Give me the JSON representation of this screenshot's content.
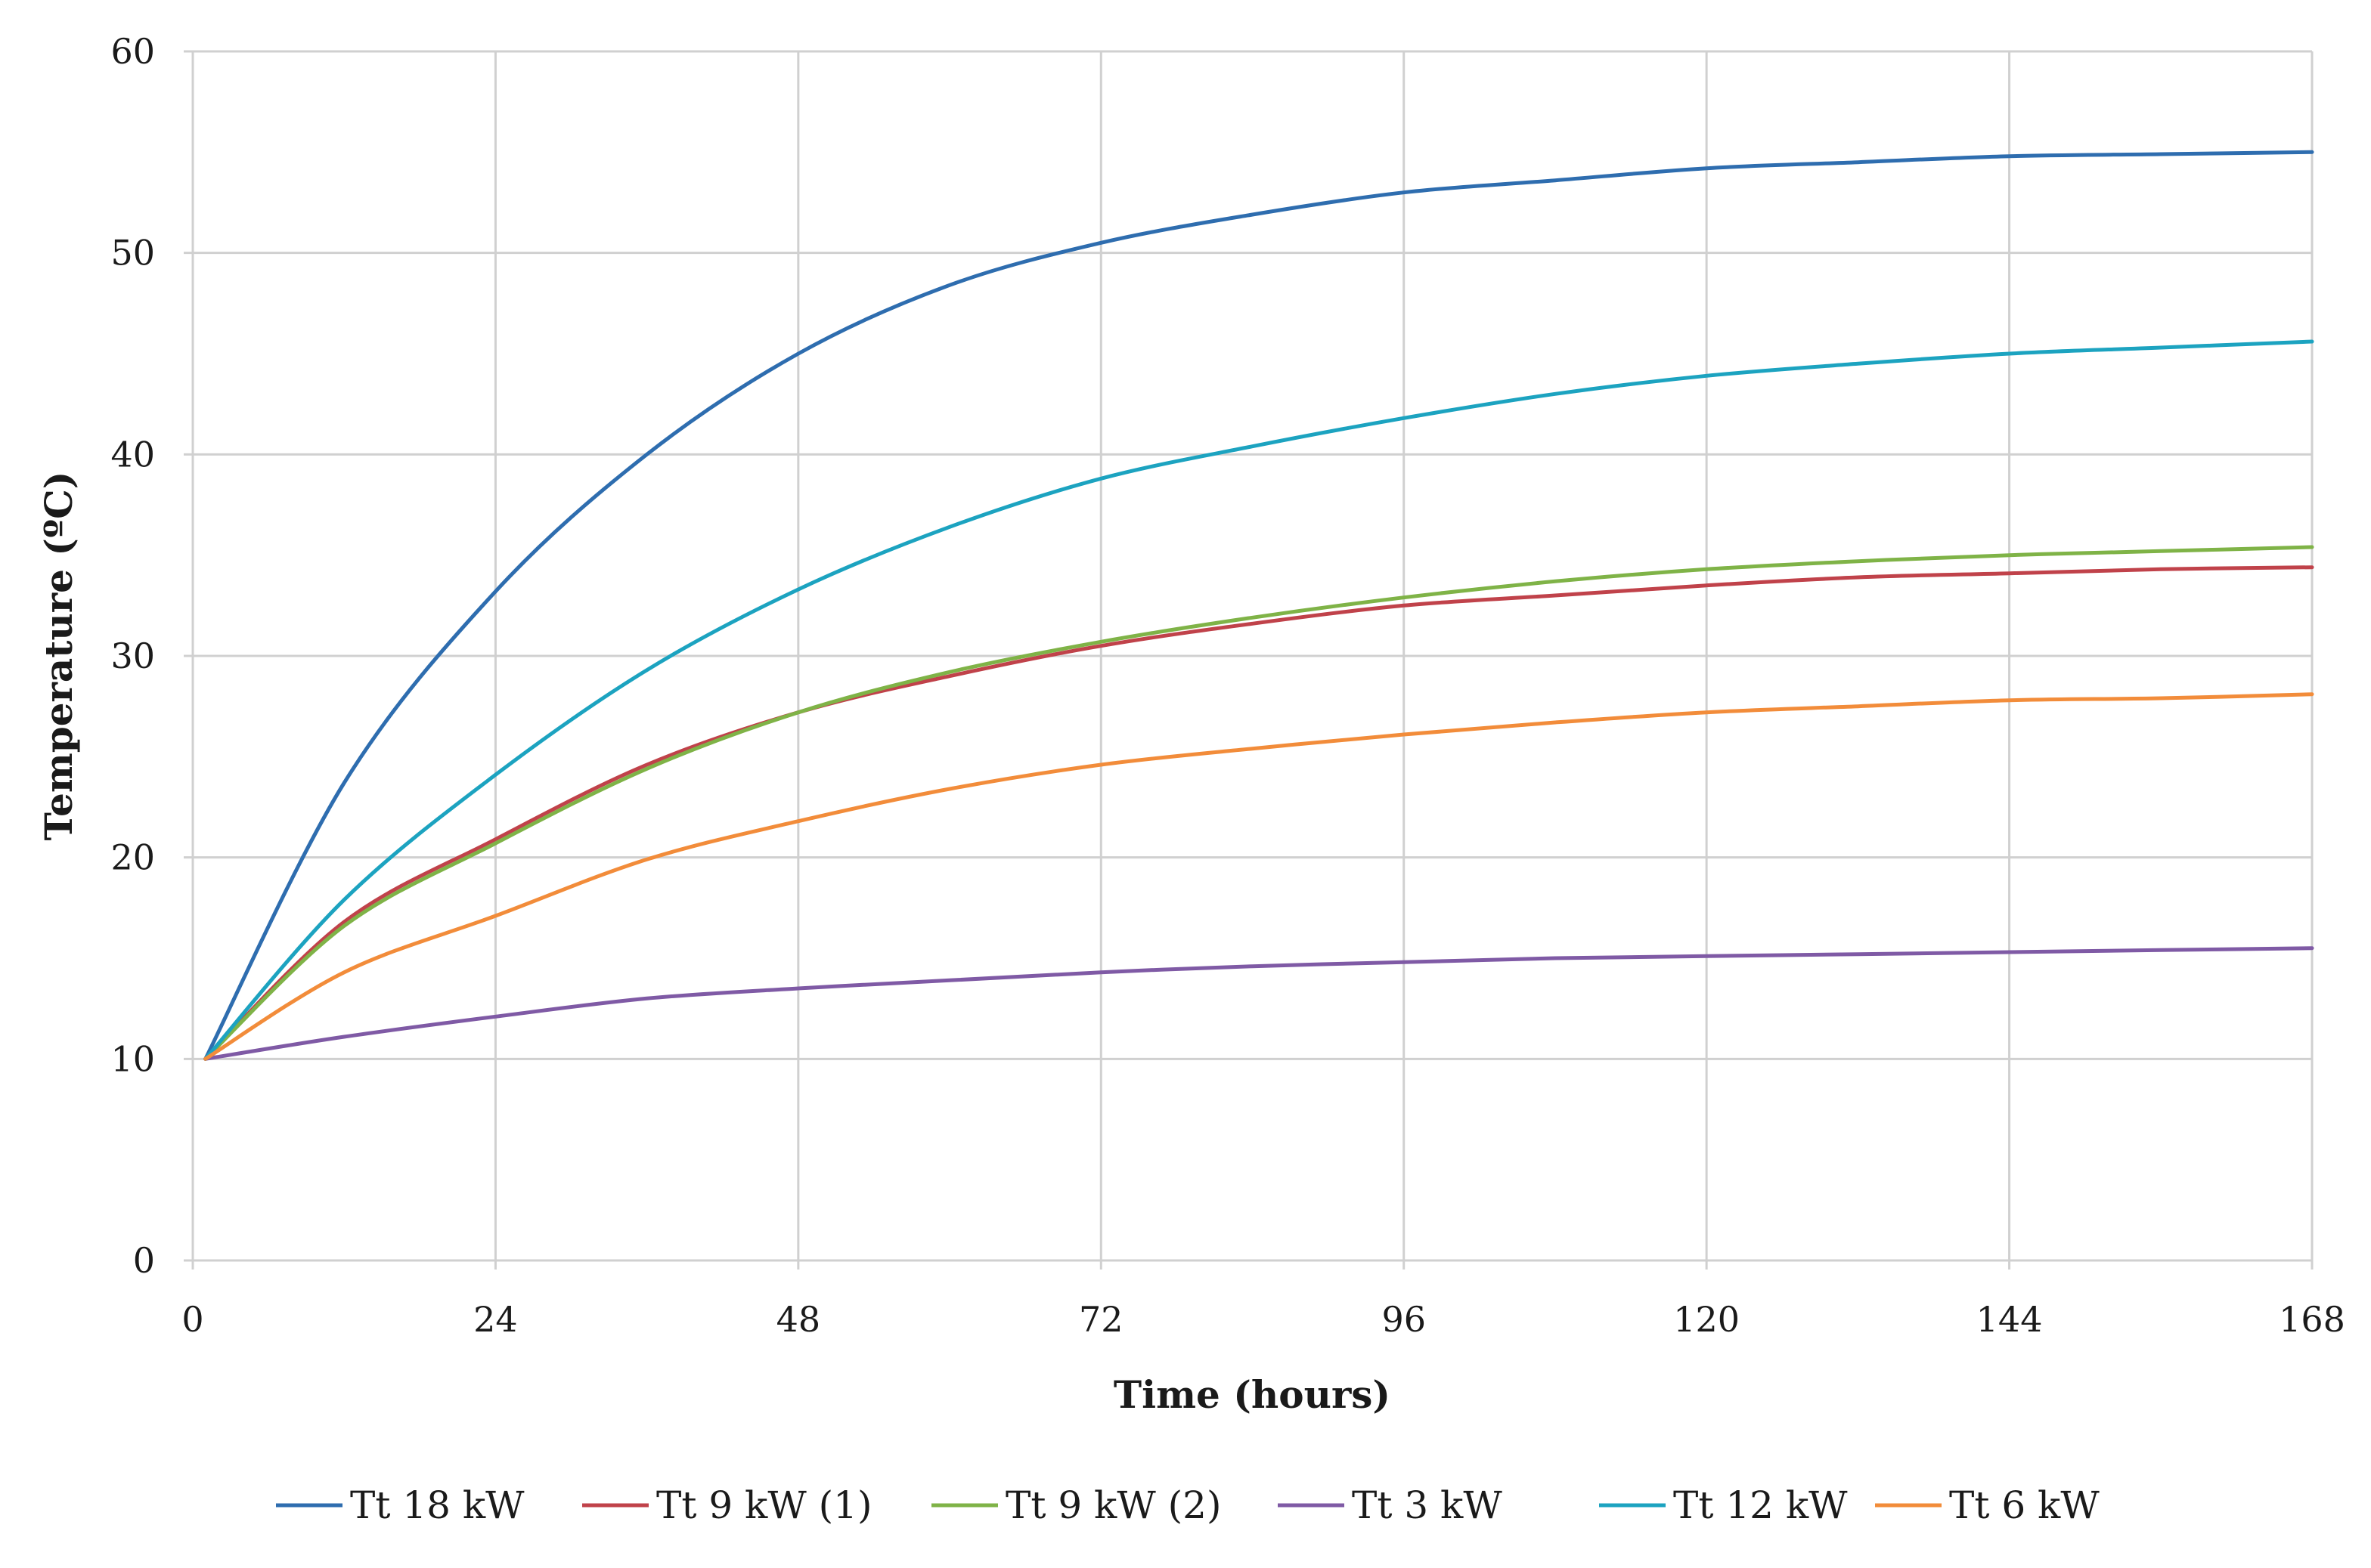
{
  "chart_data": {
    "type": "line",
    "title": "",
    "xlabel": "Time (hours)",
    "ylabel": "Temperature (ºC)",
    "xlim": [
      0,
      168
    ],
    "ylim": [
      0,
      60
    ],
    "x_ticks": [
      "0",
      "24",
      "48",
      "72",
      "96",
      "120",
      "144",
      "168"
    ],
    "y_ticks": [
      "0",
      "10",
      "20",
      "30",
      "40",
      "50",
      "60"
    ],
    "x_tick_values": [
      0,
      24,
      48,
      72,
      96,
      120,
      144,
      168
    ],
    "y_tick_values": [
      0,
      10,
      20,
      30,
      40,
      50,
      60
    ],
    "grid": true,
    "legend_position": "bottom",
    "x": [
      1,
      12,
      24,
      36,
      48,
      60,
      72,
      84,
      96,
      108,
      120,
      132,
      144,
      156,
      168
    ],
    "series": [
      {
        "name": "Tt 18 kW",
        "color": "#2E6DAF",
        "values": [
          10,
          23.7,
          33.2,
          40.0,
          45.0,
          48.4,
          50.5,
          51.9,
          53.0,
          53.6,
          54.2,
          54.5,
          54.8,
          54.9,
          55.0
        ]
      },
      {
        "name": "Tt 9 kW (1)",
        "color": "#C0424A",
        "values": [
          10,
          16.8,
          20.9,
          24.6,
          27.2,
          29.0,
          30.5,
          31.6,
          32.5,
          33.0,
          33.5,
          33.9,
          34.1,
          34.3,
          34.4
        ]
      },
      {
        "name": "Tt 9 kW (2)",
        "color": "#7FB347",
        "values": [
          10,
          16.6,
          20.7,
          24.4,
          27.2,
          29.2,
          30.7,
          31.9,
          32.9,
          33.7,
          34.3,
          34.7,
          35.0,
          35.2,
          35.4
        ]
      },
      {
        "name": "Tt 3 kW",
        "color": "#7F5AA5",
        "values": [
          10,
          11.1,
          12.1,
          13.0,
          13.5,
          13.9,
          14.3,
          14.6,
          14.8,
          15.0,
          15.1,
          15.2,
          15.3,
          15.4,
          15.5
        ]
      },
      {
        "name": "Tt 12 kW",
        "color": "#1CA3C0",
        "values": [
          10,
          17.9,
          24.1,
          29.3,
          33.3,
          36.4,
          38.8,
          40.4,
          41.8,
          43.0,
          43.9,
          44.5,
          45.0,
          45.3,
          45.6
        ]
      },
      {
        "name": "Tt 6 kW",
        "color": "#F28C3A",
        "values": [
          10,
          14.3,
          17.1,
          19.9,
          21.8,
          23.4,
          24.6,
          25.4,
          26.1,
          26.7,
          27.2,
          27.5,
          27.8,
          27.9,
          28.1
        ]
      }
    ]
  }
}
